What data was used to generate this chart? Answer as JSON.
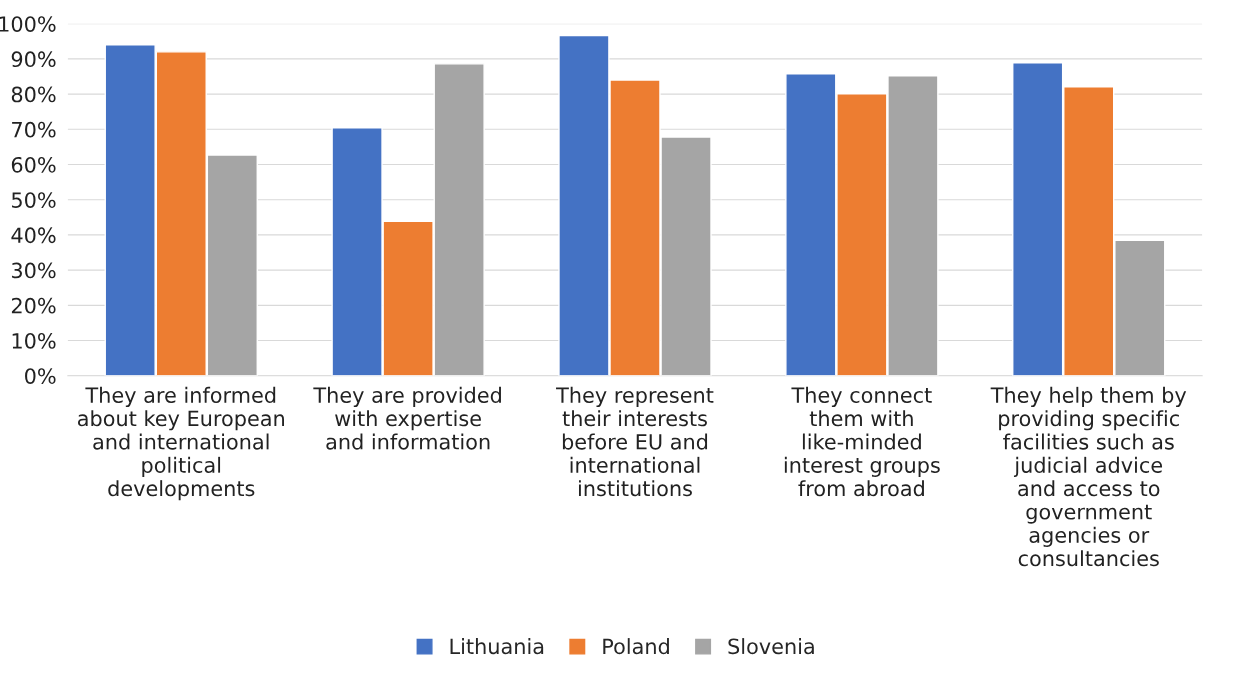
{
  "chart_data": {
    "type": "bar",
    "categories": [
      "They are informed\nabout key European\nand international\npolitical\ndevelopments",
      "They are provided\nwith expertise\nand information",
      "They represent\ntheir interests\nbefore EU and\ninternational\ninstitutions",
      "They connect\nthem with\nlike-minded\ninterest groups\nfrom abroad",
      "They help them by\nproviding specific\nfacilities such as\njudicial advice\nand access to\ngovernment\nagencies or\nconsultancies"
    ],
    "series": [
      {
        "name": "Lithuania",
        "color": "#4472c4",
        "values": [
          94,
          70.4,
          96.6,
          85.8,
          88.9
        ]
      },
      {
        "name": "Poland",
        "color": "#ed7d31",
        "values": [
          92,
          43.9,
          84,
          80.1,
          82.1
        ]
      },
      {
        "name": "Slovenia",
        "color": "#a5a5a5",
        "values": [
          62.7,
          88.6,
          67.8,
          85.2,
          38.5
        ]
      }
    ],
    "ylim": [
      0,
      100
    ],
    "yticks": [
      {
        "value": 0,
        "label": "0%"
      },
      {
        "value": 10,
        "label": "10%"
      },
      {
        "value": 20,
        "label": "20%"
      },
      {
        "value": 30,
        "label": "30%"
      },
      {
        "value": 40,
        "label": "40%"
      },
      {
        "value": 50,
        "label": "50%"
      },
      {
        "value": 60,
        "label": "60%"
      },
      {
        "value": 70,
        "label": "70%"
      },
      {
        "value": 80,
        "label": "80%"
      },
      {
        "value": 90,
        "label": "90%"
      },
      {
        "value": 100,
        "label": "100%"
      }
    ],
    "grid": "y",
    "legend": "bottom"
  }
}
